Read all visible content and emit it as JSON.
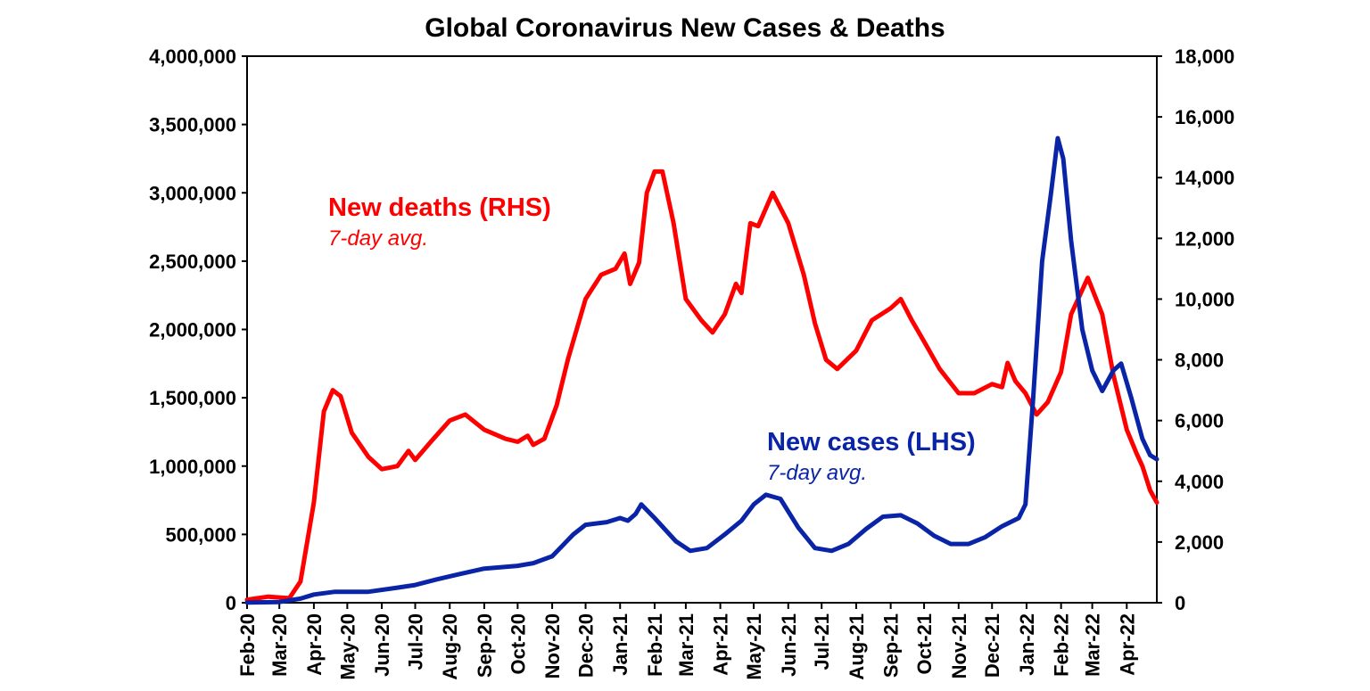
{
  "chart_data": {
    "type": "line",
    "title": "Global Coronavirus New Cases & Deaths",
    "x_ticks": [
      "Feb-20",
      "Mar-20",
      "Apr-20",
      "May-20",
      "Jun-20",
      "Jul-20",
      "Aug-20",
      "Sep-20",
      "Oct-20",
      "Nov-20",
      "Dec-20",
      "Jan-21",
      "Feb-21",
      "Mar-21",
      "Apr-21",
      "May-21",
      "Jun-21",
      "Jul-21",
      "Aug-21",
      "Sep-21",
      "Oct-21",
      "Nov-21",
      "Dec-21",
      "Jan-22",
      "Feb-22",
      "Mar-22",
      "Apr-22"
    ],
    "x_range": [
      "2020-02-01",
      "2022-04-28"
    ],
    "y_left": {
      "range": [
        0,
        4000000
      ],
      "ticks": [
        "0",
        "500,000",
        "1,000,000",
        "1,500,000",
        "2,000,000",
        "2,500,000",
        "3,000,000",
        "3,500,000",
        "4,000,000"
      ]
    },
    "y_right": {
      "range": [
        0,
        18000
      ],
      "ticks": [
        "0",
        "2,000",
        "4,000",
        "6,000",
        "8,000",
        "10,000",
        "12,000",
        "14,000",
        "16,000",
        "18,000"
      ]
    },
    "grid": false,
    "series": [
      {
        "name": "New deaths (RHS)",
        "sub": "7-day avg.",
        "axis": "right",
        "color": "#ff0000",
        "points": [
          [
            "2020-02-01",
            100
          ],
          [
            "2020-02-20",
            200
          ],
          [
            "2020-03-10",
            150
          ],
          [
            "2020-03-20",
            700
          ],
          [
            "2020-04-01",
            3300
          ],
          [
            "2020-04-10",
            6300
          ],
          [
            "2020-04-18",
            7000
          ],
          [
            "2020-04-25",
            6800
          ],
          [
            "2020-05-05",
            5600
          ],
          [
            "2020-05-20",
            4800
          ],
          [
            "2020-06-01",
            4400
          ],
          [
            "2020-06-15",
            4500
          ],
          [
            "2020-06-25",
            5000
          ],
          [
            "2020-07-01",
            4700
          ],
          [
            "2020-07-15",
            5300
          ],
          [
            "2020-08-01",
            6000
          ],
          [
            "2020-08-15",
            6200
          ],
          [
            "2020-09-01",
            5700
          ],
          [
            "2020-09-20",
            5400
          ],
          [
            "2020-10-01",
            5300
          ],
          [
            "2020-10-10",
            5500
          ],
          [
            "2020-10-15",
            5200
          ],
          [
            "2020-10-25",
            5400
          ],
          [
            "2020-11-05",
            6500
          ],
          [
            "2020-11-15",
            8000
          ],
          [
            "2020-12-01",
            10000
          ],
          [
            "2020-12-15",
            10800
          ],
          [
            "2020-12-28",
            11000
          ],
          [
            "2021-01-05",
            11500
          ],
          [
            "2021-01-10",
            10500
          ],
          [
            "2021-01-18",
            11200
          ],
          [
            "2021-01-25",
            13500
          ],
          [
            "2021-02-01",
            14200
          ],
          [
            "2021-02-08",
            14200
          ],
          [
            "2021-02-18",
            12500
          ],
          [
            "2021-03-01",
            10000
          ],
          [
            "2021-03-15",
            9300
          ],
          [
            "2021-03-25",
            8900
          ],
          [
            "2021-04-05",
            9500
          ],
          [
            "2021-04-15",
            10500
          ],
          [
            "2021-04-20",
            10200
          ],
          [
            "2021-04-28",
            12500
          ],
          [
            "2021-05-05",
            12400
          ],
          [
            "2021-05-18",
            13500
          ],
          [
            "2021-06-01",
            12500
          ],
          [
            "2021-06-15",
            10800
          ],
          [
            "2021-06-25",
            9200
          ],
          [
            "2021-07-05",
            8000
          ],
          [
            "2021-07-15",
            7700
          ],
          [
            "2021-08-01",
            8300
          ],
          [
            "2021-08-15",
            9300
          ],
          [
            "2021-09-01",
            9700
          ],
          [
            "2021-09-10",
            10000
          ],
          [
            "2021-09-20",
            9300
          ],
          [
            "2021-10-01",
            8600
          ],
          [
            "2021-10-15",
            7700
          ],
          [
            "2021-11-01",
            6900
          ],
          [
            "2021-11-15",
            6900
          ],
          [
            "2021-12-01",
            7200
          ],
          [
            "2021-12-10",
            7100
          ],
          [
            "2021-12-15",
            7900
          ],
          [
            "2021-12-22",
            7300
          ],
          [
            "2021-12-31",
            6900
          ],
          [
            "2022-01-10",
            6200
          ],
          [
            "2022-01-20",
            6600
          ],
          [
            "2022-02-01",
            7600
          ],
          [
            "2022-02-10",
            9500
          ],
          [
            "2022-02-25",
            10700
          ],
          [
            "2022-03-10",
            9500
          ],
          [
            "2022-03-20",
            7500
          ],
          [
            "2022-04-01",
            5700
          ],
          [
            "2022-04-10",
            4900
          ],
          [
            "2022-04-15",
            4500
          ],
          [
            "2022-04-22",
            3700
          ],
          [
            "2022-04-28",
            3300
          ]
        ]
      },
      {
        "name": "New cases (LHS)",
        "sub": "7-day avg.",
        "axis": "left",
        "color": "#0a24a8",
        "points": [
          [
            "2020-02-01",
            2000
          ],
          [
            "2020-03-01",
            5000
          ],
          [
            "2020-03-20",
            30000
          ],
          [
            "2020-04-01",
            60000
          ],
          [
            "2020-04-20",
            80000
          ],
          [
            "2020-05-20",
            80000
          ],
          [
            "2020-06-15",
            110000
          ],
          [
            "2020-07-01",
            130000
          ],
          [
            "2020-07-20",
            170000
          ],
          [
            "2020-08-10",
            210000
          ],
          [
            "2020-09-01",
            250000
          ],
          [
            "2020-10-01",
            270000
          ],
          [
            "2020-10-15",
            290000
          ],
          [
            "2020-11-01",
            340000
          ],
          [
            "2020-11-20",
            500000
          ],
          [
            "2020-12-01",
            570000
          ],
          [
            "2020-12-20",
            590000
          ],
          [
            "2021-01-01",
            620000
          ],
          [
            "2021-01-08",
            600000
          ],
          [
            "2021-01-15",
            650000
          ],
          [
            "2021-01-20",
            720000
          ],
          [
            "2021-02-01",
            620000
          ],
          [
            "2021-02-20",
            450000
          ],
          [
            "2021-03-05",
            380000
          ],
          [
            "2021-03-20",
            400000
          ],
          [
            "2021-04-05",
            500000
          ],
          [
            "2021-04-20",
            600000
          ],
          [
            "2021-05-01",
            720000
          ],
          [
            "2021-05-12",
            790000
          ],
          [
            "2021-05-25",
            760000
          ],
          [
            "2021-06-10",
            550000
          ],
          [
            "2021-06-25",
            400000
          ],
          [
            "2021-07-10",
            380000
          ],
          [
            "2021-07-25",
            430000
          ],
          [
            "2021-08-10",
            540000
          ],
          [
            "2021-08-25",
            630000
          ],
          [
            "2021-09-10",
            640000
          ],
          [
            "2021-09-25",
            580000
          ],
          [
            "2021-10-10",
            490000
          ],
          [
            "2021-10-25",
            430000
          ],
          [
            "2021-11-10",
            430000
          ],
          [
            "2021-11-25",
            480000
          ],
          [
            "2021-12-10",
            560000
          ],
          [
            "2021-12-25",
            620000
          ],
          [
            "2021-12-31",
            720000
          ],
          [
            "2022-01-07",
            1500000
          ],
          [
            "2022-01-15",
            2500000
          ],
          [
            "2022-01-23",
            3000000
          ],
          [
            "2022-01-29",
            3400000
          ],
          [
            "2022-02-03",
            3250000
          ],
          [
            "2022-02-10",
            2650000
          ],
          [
            "2022-02-20",
            2000000
          ],
          [
            "2022-03-01",
            1700000
          ],
          [
            "2022-03-10",
            1550000
          ],
          [
            "2022-03-20",
            1700000
          ],
          [
            "2022-03-27",
            1750000
          ],
          [
            "2022-04-05",
            1500000
          ],
          [
            "2022-04-15",
            1200000
          ],
          [
            "2022-04-22",
            1080000
          ],
          [
            "2022-04-28",
            1050000
          ]
        ]
      }
    ]
  }
}
